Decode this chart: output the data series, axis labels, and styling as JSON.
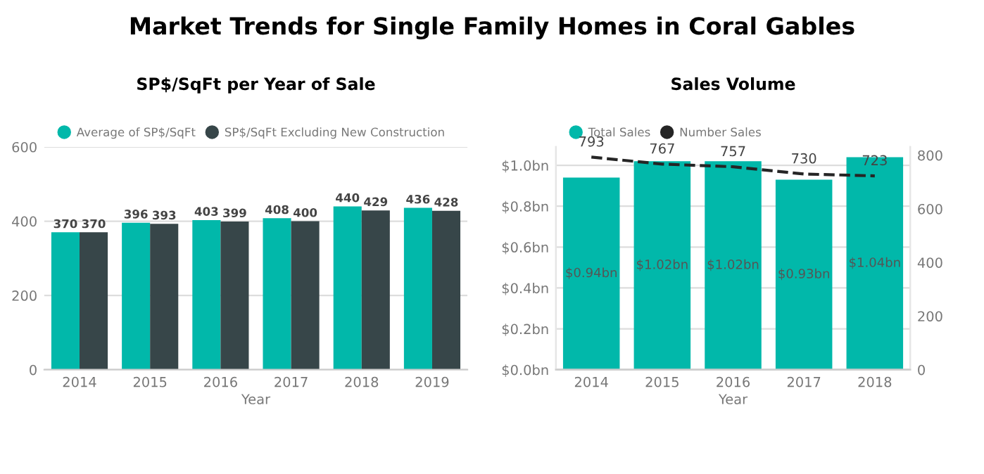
{
  "chart_data": [
    {
      "type": "bar",
      "title": "Market Trends for Single Family Homes in Coral Gables",
      "subtitle": "SP$/SqFt per Year of Sale",
      "xlabel": "Year",
      "categories": [
        "2014",
        "2015",
        "2016",
        "2017",
        "2018",
        "2019"
      ],
      "series": [
        {
          "name": "Average of SP$/SqFt",
          "color": "#01b8aa",
          "values": [
            370,
            396,
            403,
            408,
            440,
            436
          ]
        },
        {
          "name": "SP$/SqFt Excluding New Construction",
          "color": "#374649",
          "values": [
            370,
            393,
            399,
            400,
            429,
            428
          ]
        }
      ],
      "ylim": [
        0,
        600
      ],
      "yticks": [
        0,
        200,
        400,
        600
      ],
      "grid": "y",
      "legend": "top left",
      "data_labels": true
    },
    {
      "type": "bar",
      "title": "Sales Volume",
      "xlabel": "Year",
      "categories": [
        "2014",
        "2015",
        "2016",
        "2017",
        "2018"
      ],
      "series": [
        {
          "name": "Total Sales",
          "color": "#01b8aa",
          "values": [
            0.94,
            1.02,
            1.02,
            0.93,
            1.04
          ],
          "value_labels": [
            "$0.94bn",
            "$1.02bn",
            "$1.02bn",
            "$0.93bn",
            "$1.04bn"
          ]
        },
        {
          "name": "Number Sales",
          "type": "line",
          "axis": "y2",
          "color": "#252525",
          "line_style": "dashed",
          "marker": "none",
          "values": [
            793,
            767,
            757,
            730,
            723
          ],
          "data_labels": true
        }
      ],
      "ylim": [
        0,
        1.09
      ],
      "yticks": [
        {
          "value": 0,
          "label": "$0.0bn"
        },
        {
          "value": 0.2,
          "label": "$0.2bn"
        },
        {
          "value": 0.4,
          "label": "$0.4bn"
        },
        {
          "value": 0.6,
          "label": "$0.6bn"
        },
        {
          "value": 0.8,
          "label": "$0.8bn"
        },
        {
          "value": 1.0,
          "label": "$1.0bn"
        }
      ],
      "y2lim": [
        0,
        831
      ],
      "y2ticks": [
        0,
        200,
        400,
        600,
        800
      ],
      "grid": "y",
      "legend": "top left"
    }
  ]
}
